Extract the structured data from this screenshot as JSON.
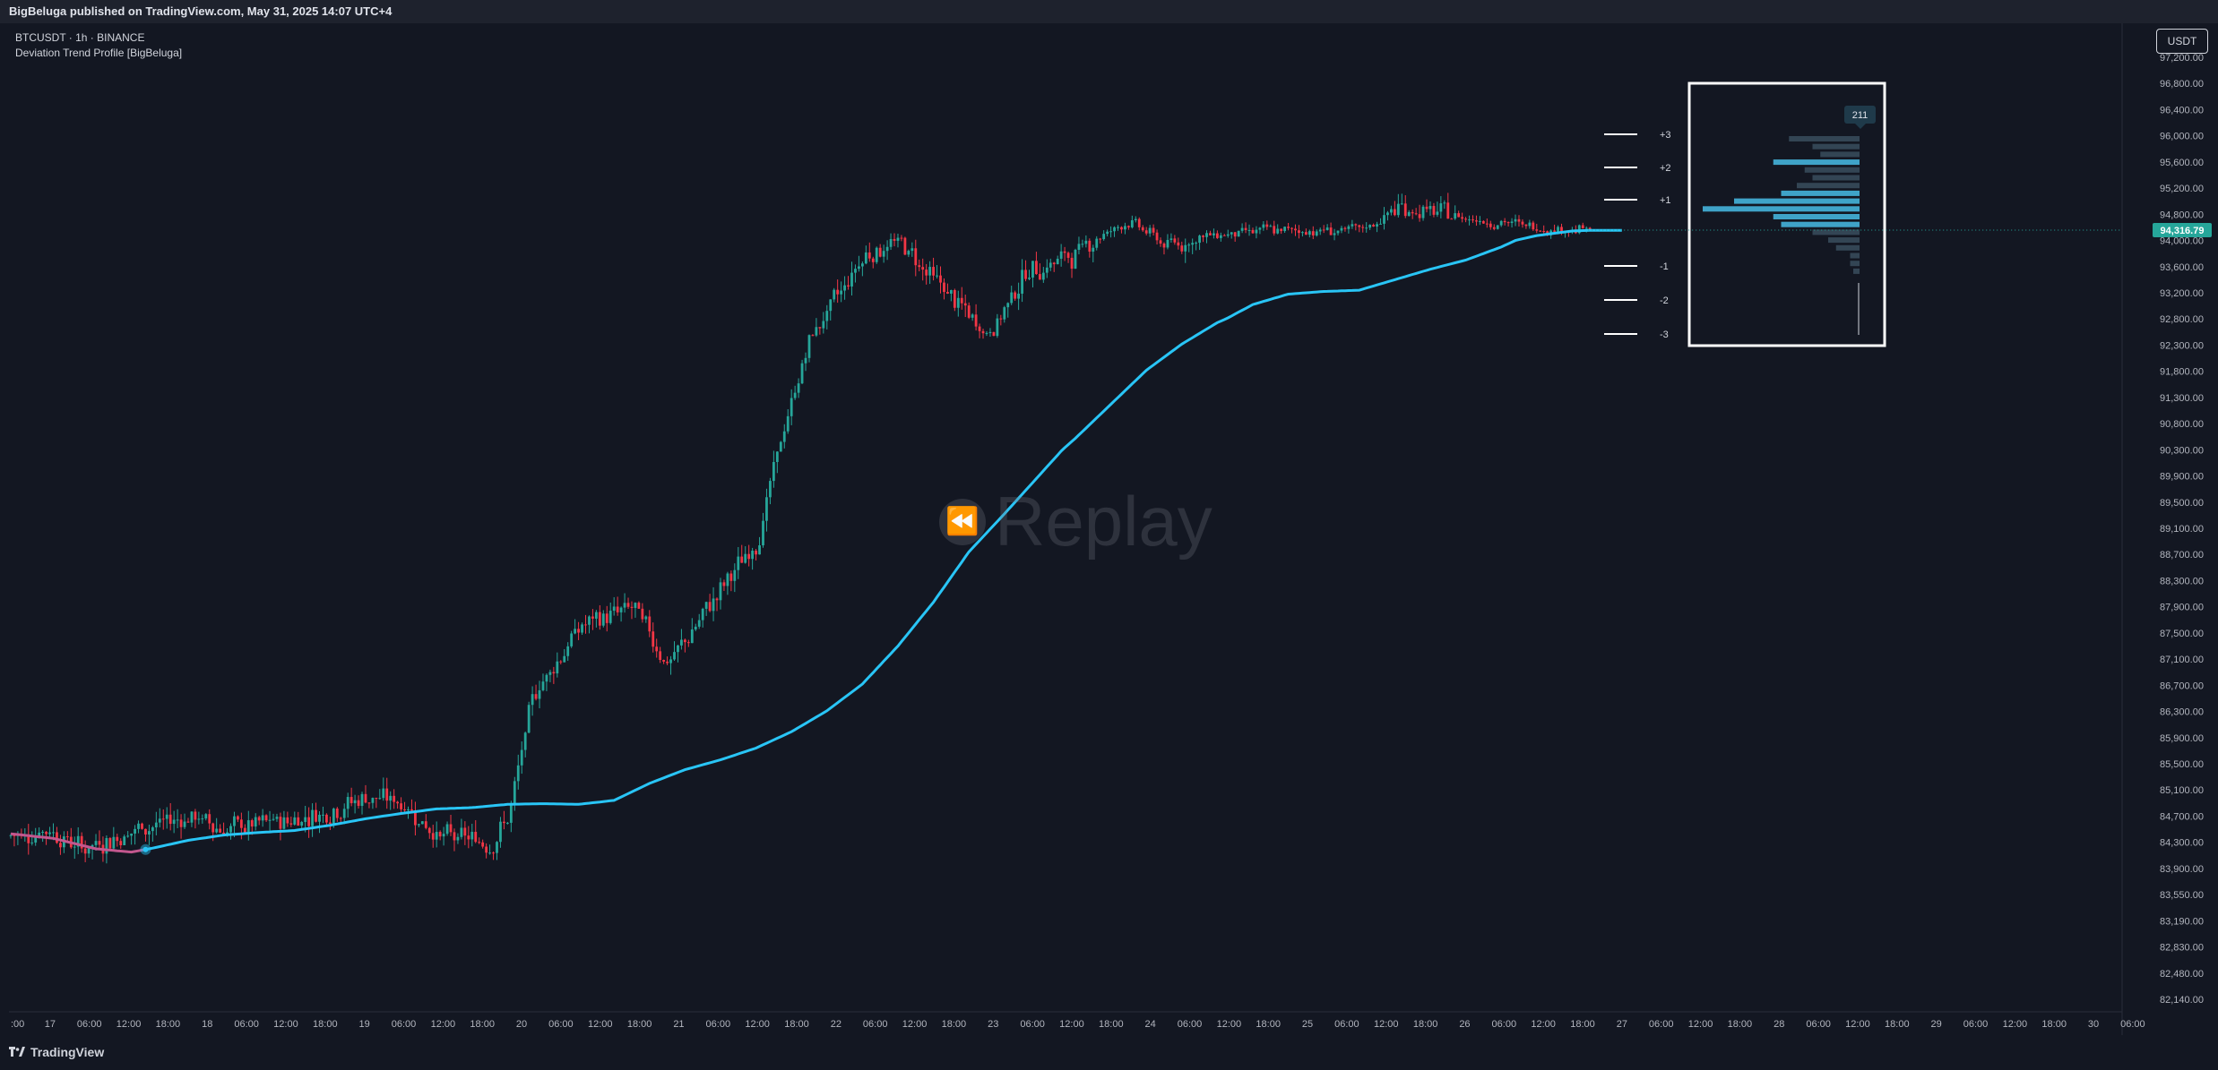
{
  "header": {
    "publisher_line": "BigBeluga published on TradingView.com, May 31, 2025 14:07 UTC+4"
  },
  "legend": {
    "symbol_line": "BTCUSDT · 1h · BINANCE",
    "indicator_line": "Deviation Trend Profile [BigBeluga]"
  },
  "currency_button": "USDT",
  "watermark": "Replay",
  "footer": {
    "brand": "TradingView"
  },
  "colors": {
    "background": "#131722",
    "bull": "#26a69a",
    "bear": "#f23645",
    "trend_line": "#29c5f6",
    "trend_line_bear": "#c2578e",
    "profile": "#3fa3c8",
    "price_label": "#26a69a"
  },
  "chart_data": {
    "type": "candlestick",
    "symbol": "BTCUSDT",
    "interval": "1h",
    "exchange": "BINANCE",
    "y_axis": {
      "ticks": [
        "97,200.00",
        "96,800.00",
        "96,400.00",
        "96,000.00",
        "95,600.00",
        "95,200.00",
        "94,800.00",
        "94,000.00",
        "93,600.00",
        "93,200.00",
        "92,800.00",
        "92,300.00",
        "91,800.00",
        "91,300.00",
        "90,800.00",
        "90,300.00",
        "89,900.00",
        "89,500.00",
        "89,100.00",
        "88,700.00",
        "88,300.00",
        "87,900.00",
        "87,500.00",
        "87,100.00",
        "86,700.00",
        "86,300.00",
        "85,900.00",
        "85,500.00",
        "85,100.00",
        "84,700.00",
        "84,300.00",
        "83,900.00",
        "83,550.00",
        "83,190.00",
        "82,830.00",
        "82,480.00",
        "82,140.00"
      ],
      "current_price_label": "94,316.79"
    },
    "x_axis": {
      "ticks": [
        ":00",
        "17",
        "06:00",
        "12:00",
        "18:00",
        "18",
        "06:00",
        "12:00",
        "18:00",
        "19",
        "06:00",
        "12:00",
        "18:00",
        "20",
        "06:00",
        "12:00",
        "18:00",
        "21",
        "06:00",
        "12:00",
        "18:00",
        "22",
        "06:00",
        "12:00",
        "18:00",
        "23",
        "06:00",
        "12:00",
        "18:00",
        "24",
        "06:00",
        "12:00",
        "18:00",
        "25",
        "06:00",
        "12:00",
        "18:00",
        "26",
        "06:00",
        "12:00",
        "18:00",
        "27",
        "06:00",
        "12:00",
        "18:00",
        "28",
        "06:00",
        "12:00",
        "18:00",
        "29",
        "06:00",
        "12:00",
        "18:00",
        "30",
        "06:00"
      ]
    },
    "trend_line": [
      [
        0,
        84430
      ],
      [
        12,
        84360
      ],
      [
        24,
        84200
      ],
      [
        34,
        84150
      ],
      [
        40,
        84210
      ],
      [
        50,
        84330
      ],
      [
        60,
        84410
      ],
      [
        70,
        84450
      ],
      [
        80,
        84480
      ],
      [
        90,
        84560
      ],
      [
        100,
        84660
      ],
      [
        110,
        84740
      ],
      [
        120,
        84810
      ],
      [
        130,
        84830
      ],
      [
        140,
        84880
      ],
      [
        150,
        84890
      ],
      [
        160,
        84880
      ],
      [
        170,
        84940
      ],
      [
        180,
        85200
      ],
      [
        190,
        85410
      ],
      [
        200,
        85560
      ],
      [
        210,
        85740
      ],
      [
        220,
        85990
      ],
      [
        230,
        86310
      ],
      [
        240,
        86720
      ],
      [
        250,
        87300
      ],
      [
        260,
        87970
      ],
      [
        270,
        88740
      ],
      [
        280,
        89320
      ],
      [
        290,
        89920
      ],
      [
        300,
        90520
      ],
      [
        310,
        91170
      ],
      [
        320,
        91820
      ],
      [
        330,
        92320
      ],
      [
        340,
        92730
      ],
      [
        350,
        93020
      ],
      [
        360,
        93180
      ],
      [
        370,
        93220
      ],
      [
        380,
        93240
      ],
      [
        390,
        93400
      ],
      [
        400,
        93560
      ],
      [
        410,
        93700
      ],
      [
        420,
        93900
      ],
      [
        430,
        94150
      ],
      [
        440,
        94290
      ],
      [
        445,
        94310
      ]
    ],
    "deviation_levels": [
      "+3",
      "+2",
      "+1",
      "-1",
      "-2",
      "-3"
    ],
    "profile": {
      "label": "211",
      "bars": [
        0.45,
        0.3,
        0.25,
        0.55,
        0.35,
        0.3,
        0.4,
        0.5,
        0.8,
        1.0,
        0.55,
        0.5,
        0.3,
        0.2,
        0.15,
        0.06,
        0.06,
        0.04
      ]
    }
  }
}
